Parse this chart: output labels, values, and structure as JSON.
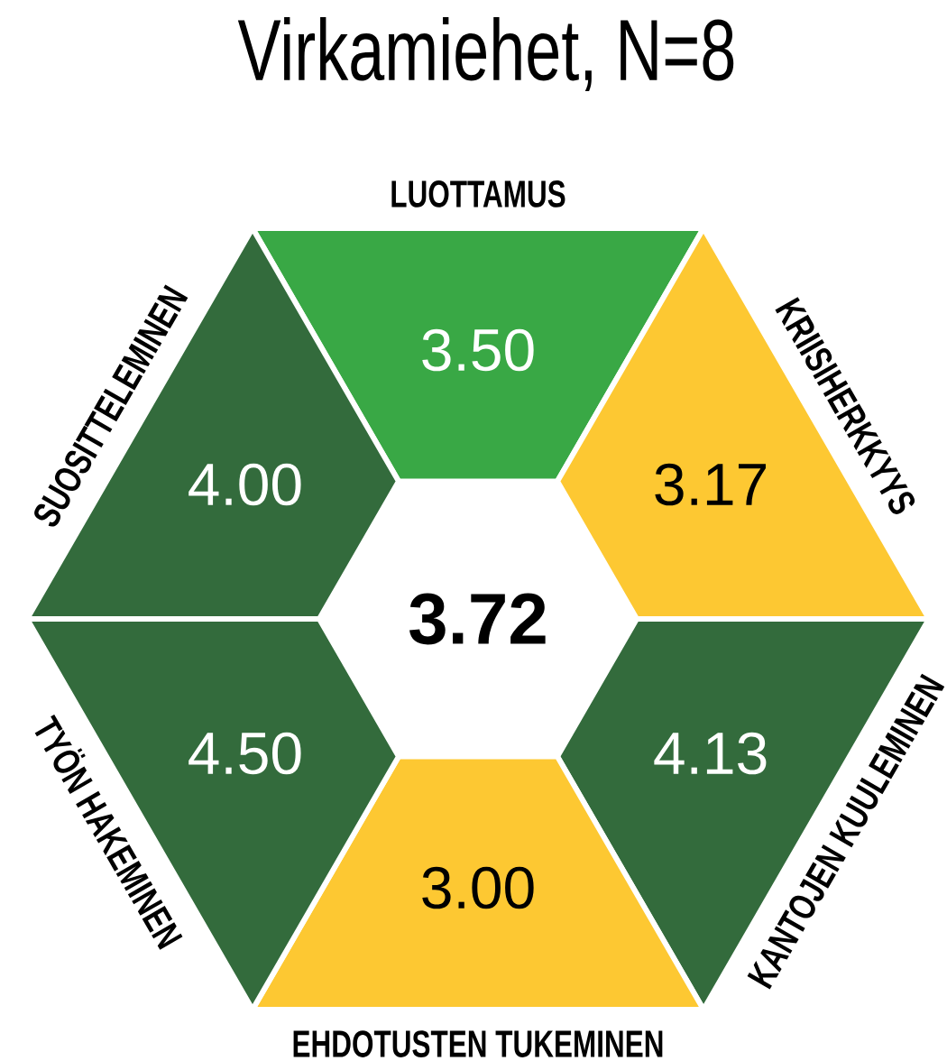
{
  "chart_data": {
    "type": "other",
    "title": "Virkamiehet, N=8",
    "categories": [
      "LUOTTAMUS",
      "KRIISIHERKKYYS",
      "KANTOJEN KUULEMINEN",
      "EHDOTUSTEN TUKEMINEN",
      "TYÖN HAKEMINEN",
      "SUOSITTELEMINEN"
    ],
    "values": [
      3.5,
      3.17,
      4.13,
      3.0,
      4.5,
      4.0
    ],
    "value_labels": [
      "3.50",
      "3.17",
      "4.13",
      "3.00",
      "4.50",
      "4.00"
    ],
    "colors": [
      "#39a845",
      "#fdc832",
      "#336b3c",
      "#fdc832",
      "#336b3c",
      "#336b3c"
    ],
    "annotations": [
      "3.72"
    ]
  }
}
